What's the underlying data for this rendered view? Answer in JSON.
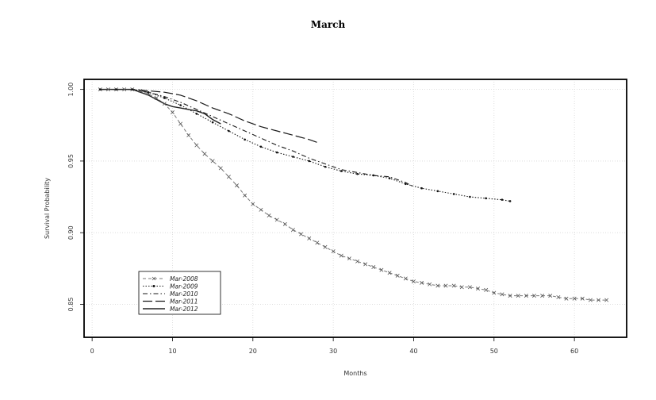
{
  "chart_data": {
    "type": "line",
    "title": "March",
    "xlabel": "Months",
    "ylabel": "Survival Probability",
    "xlim": [
      -1,
      66.5
    ],
    "ylim": [
      0.827,
      1.007
    ],
    "xticks": [
      0,
      10,
      20,
      30,
      40,
      50,
      60
    ],
    "yticks": [
      0.85,
      0.9,
      0.95,
      1.0
    ],
    "ytick_labels": [
      "0.85",
      "0.90",
      "0.95",
      "1.00"
    ],
    "grid": true,
    "legend_position": "bottom-left",
    "series": [
      {
        "name": "Mar-2008",
        "style": "dashed-x",
        "x": [
          1,
          2,
          3,
          4,
          5,
          6,
          7,
          8,
          9,
          10,
          11,
          12,
          13,
          14,
          15,
          16,
          17,
          18,
          19,
          20,
          21,
          22,
          23,
          24,
          25,
          26,
          27,
          28,
          29,
          30,
          31,
          32,
          33,
          34,
          35,
          36,
          37,
          38,
          39,
          40,
          41,
          42,
          43,
          44,
          45,
          46,
          47,
          48,
          49,
          50,
          51,
          52,
          53,
          54,
          55,
          56,
          57,
          58,
          59,
          60,
          61,
          62,
          63,
          64
        ],
        "y": [
          1.0,
          1.0,
          1.0,
          1.0,
          1.0,
          0.999,
          0.997,
          0.994,
          0.99,
          0.984,
          0.976,
          0.968,
          0.961,
          0.955,
          0.95,
          0.945,
          0.939,
          0.933,
          0.926,
          0.92,
          0.916,
          0.912,
          0.909,
          0.906,
          0.902,
          0.899,
          0.896,
          0.893,
          0.89,
          0.887,
          0.884,
          0.882,
          0.88,
          0.878,
          0.876,
          0.874,
          0.872,
          0.87,
          0.868,
          0.866,
          0.865,
          0.864,
          0.863,
          0.863,
          0.863,
          0.862,
          0.862,
          0.861,
          0.86,
          0.858,
          0.857,
          0.856,
          0.856,
          0.856,
          0.856,
          0.856,
          0.856,
          0.855,
          0.854,
          0.854,
          0.854,
          0.853,
          0.853,
          0.853
        ]
      },
      {
        "name": "Mar-2009",
        "style": "dotted-dot",
        "x": [
          1,
          3,
          5,
          7,
          9,
          11,
          13,
          15,
          17,
          19,
          21,
          23,
          25,
          27,
          29,
          31,
          33,
          35,
          37,
          39,
          41,
          43,
          45,
          47,
          49,
          51,
          52
        ],
        "y": [
          1.0,
          1.0,
          1.0,
          0.998,
          0.994,
          0.989,
          0.983,
          0.977,
          0.971,
          0.965,
          0.96,
          0.956,
          0.953,
          0.95,
          0.946,
          0.943,
          0.941,
          0.94,
          0.938,
          0.934,
          0.931,
          0.929,
          0.927,
          0.925,
          0.924,
          0.923,
          0.922
        ]
      },
      {
        "name": "Mar-2010",
        "style": "dashdot",
        "x": [
          1,
          3,
          5,
          7,
          9,
          11,
          13,
          15,
          17,
          19,
          21,
          23,
          25,
          27,
          29,
          31,
          33,
          35,
          37,
          39,
          40
        ],
        "y": [
          1.0,
          1.0,
          1.0,
          0.998,
          0.995,
          0.991,
          0.986,
          0.981,
          0.976,
          0.971,
          0.966,
          0.961,
          0.957,
          0.952,
          0.948,
          0.944,
          0.942,
          0.94,
          0.939,
          0.935,
          0.932
        ]
      },
      {
        "name": "Mar-2011",
        "style": "longdash",
        "x": [
          1,
          3,
          5,
          7,
          9,
          11,
          13,
          15,
          17,
          19,
          21,
          23,
          25,
          27,
          28
        ],
        "y": [
          1.0,
          1.0,
          1.0,
          0.999,
          0.998,
          0.996,
          0.992,
          0.987,
          0.983,
          0.978,
          0.974,
          0.971,
          0.968,
          0.965,
          0.963
        ]
      },
      {
        "name": "Mar-2012",
        "style": "solid",
        "x": [
          1,
          2,
          3,
          4,
          5,
          6,
          7,
          8,
          9,
          10,
          11,
          12,
          13,
          14,
          15,
          16
        ],
        "y": [
          1.0,
          1.0,
          1.0,
          1.0,
          1.0,
          0.998,
          0.996,
          0.993,
          0.99,
          0.988,
          0.987,
          0.986,
          0.985,
          0.983,
          0.979,
          0.976
        ]
      }
    ]
  }
}
